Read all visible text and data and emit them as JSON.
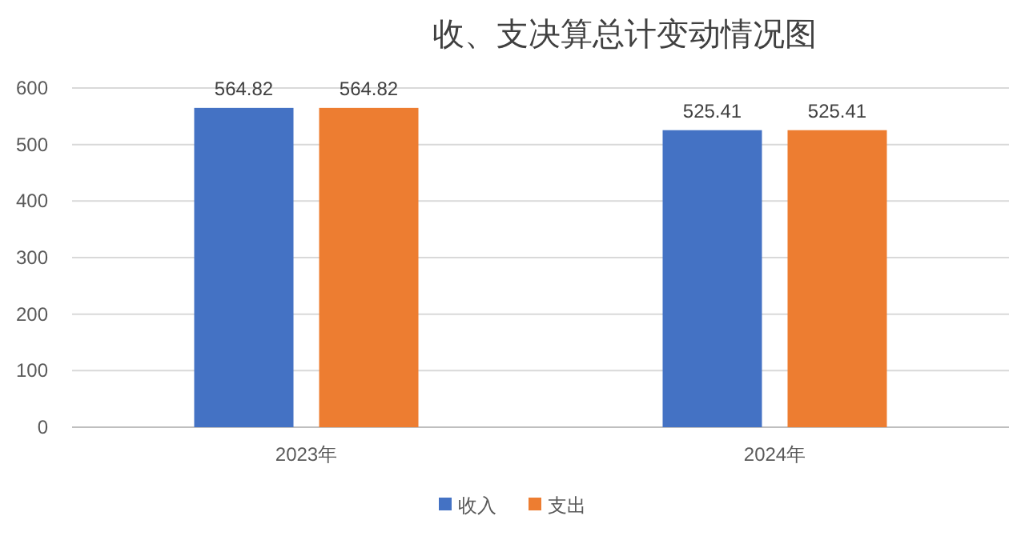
{
  "chart_data": {
    "type": "bar",
    "title": "收、支决算总计变动情况图",
    "categories": [
      "2023年",
      "2024年"
    ],
    "series": [
      {
        "name": "收入",
        "color": "#4472c4",
        "values": [
          564.82,
          525.41
        ]
      },
      {
        "name": "支出",
        "color": "#ed7d31",
        "values": [
          564.82,
          525.41
        ]
      }
    ],
    "ylim": [
      0,
      600
    ],
    "yticks": [
      0,
      100,
      200,
      300,
      400,
      500,
      600
    ],
    "grid": "y",
    "legend": "bottom",
    "data_labels": true
  }
}
